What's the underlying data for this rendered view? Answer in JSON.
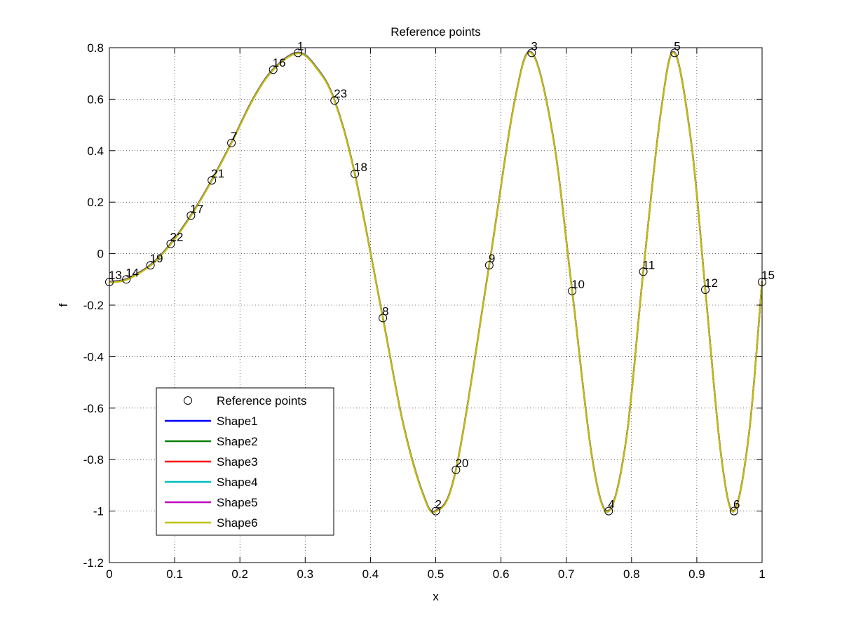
{
  "chart_data": {
    "type": "line",
    "title": "Reference points",
    "xlabel": "x",
    "ylabel": "f",
    "xlim": [
      0,
      1
    ],
    "ylim": [
      -1.2,
      0.8
    ],
    "grid": true,
    "legend_position": "bottom-left",
    "x_ticks": [
      "0",
      "0.1",
      "0.2",
      "0.3",
      "0.4",
      "0.5",
      "0.6",
      "0.7",
      "0.8",
      "0.9",
      "1"
    ],
    "y_ticks": [
      "-1.2",
      "-1",
      "-0.8",
      "-0.6",
      "-0.4",
      "-0.2",
      "0",
      "0.2",
      "0.4",
      "0.6",
      "0.8"
    ],
    "reference_points": {
      "name": "Reference points",
      "points": [
        {
          "label": "1",
          "x": 0.289,
          "y": 0.78
        },
        {
          "label": "2",
          "x": 0.5,
          "y": -1.0
        },
        {
          "label": "3",
          "x": 0.647,
          "y": 0.78
        },
        {
          "label": "4",
          "x": 0.765,
          "y": -1.0
        },
        {
          "label": "5",
          "x": 0.866,
          "y": 0.78
        },
        {
          "label": "6",
          "x": 0.957,
          "y": -1.0
        },
        {
          "label": "7",
          "x": 0.187,
          "y": 0.43
        },
        {
          "label": "8",
          "x": 0.419,
          "y": -0.25
        },
        {
          "label": "9",
          "x": 0.582,
          "y": -0.045
        },
        {
          "label": "10",
          "x": 0.709,
          "y": -0.145
        },
        {
          "label": "11",
          "x": 0.818,
          "y": -0.07
        },
        {
          "label": "12",
          "x": 0.913,
          "y": -0.14
        },
        {
          "label": "13",
          "x": 0.0,
          "y": -0.11
        },
        {
          "label": "14",
          "x": 0.026,
          "y": -0.1
        },
        {
          "label": "15",
          "x": 1.0,
          "y": -0.11
        },
        {
          "label": "16",
          "x": 0.251,
          "y": 0.715
        },
        {
          "label": "17",
          "x": 0.125,
          "y": 0.148
        },
        {
          "label": "18",
          "x": 0.376,
          "y": 0.31
        },
        {
          "label": "19",
          "x": 0.063,
          "y": -0.045
        },
        {
          "label": "20",
          "x": 0.531,
          "y": -0.84
        },
        {
          "label": "21",
          "x": 0.157,
          "y": 0.285
        },
        {
          "label": "22",
          "x": 0.094,
          "y": 0.038
        },
        {
          "label": "23",
          "x": 0.345,
          "y": 0.595
        }
      ]
    },
    "series": [
      {
        "name": "Shape1",
        "color": "#0000ff"
      },
      {
        "name": "Shape2",
        "color": "#008000"
      },
      {
        "name": "Shape3",
        "color": "#ff0000"
      },
      {
        "name": "Shape4",
        "color": "#00bfbf"
      },
      {
        "name": "Shape5",
        "color": "#bf00bf"
      },
      {
        "name": "Shape6",
        "color": "#bfbf00"
      }
    ],
    "curve_x": [
      0,
      0.026,
      0.063,
      0.094,
      0.125,
      0.157,
      0.187,
      0.22,
      0.251,
      0.289,
      0.318,
      0.345,
      0.376,
      0.419,
      0.45,
      0.48,
      0.5,
      0.531,
      0.582,
      0.62,
      0.647,
      0.68,
      0.709,
      0.74,
      0.765,
      0.792,
      0.818,
      0.845,
      0.866,
      0.892,
      0.913,
      0.937,
      0.957,
      0.98,
      1.0
    ],
    "curve_y": [
      -0.11,
      -0.1,
      -0.045,
      0.038,
      0.148,
      0.285,
      0.43,
      0.6,
      0.715,
      0.78,
      0.72,
      0.595,
      0.31,
      -0.25,
      -0.66,
      -0.93,
      -1.0,
      -0.84,
      -0.045,
      0.58,
      0.78,
      0.45,
      -0.145,
      -0.8,
      -1.0,
      -0.72,
      -0.07,
      0.55,
      0.78,
      0.42,
      -0.14,
      -0.78,
      -1.0,
      -0.7,
      -0.11
    ]
  }
}
